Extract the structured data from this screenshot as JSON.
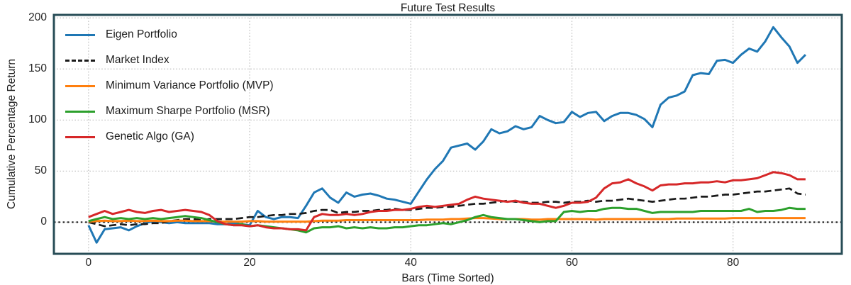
{
  "title": "Future Test Results",
  "axes": {
    "xlabel": "Bars (Time Sorted)",
    "ylabel": "Cumulative Percentage Return",
    "x_ticks": [
      0,
      20,
      40,
      60,
      80
    ],
    "y_ticks": [
      0,
      50,
      100,
      150,
      200
    ]
  },
  "colors": {
    "spine": "#274c56",
    "grid": "#c4c4c4",
    "zero_line": "#111111",
    "text": "#262626",
    "blue": "#1f77b4",
    "black": "#1a1a1a",
    "orange": "#ff7f0e",
    "green": "#2ca02c",
    "red": "#d62728"
  },
  "legend": {
    "items": [
      {
        "label": "Eigen Portfolio",
        "color": "#1f77b4",
        "style": "solid"
      },
      {
        "label": "Market Index",
        "color": "#1a1a1a",
        "style": "dashed"
      },
      {
        "label": "Minimum Variance Portfolio (MVP)",
        "color": "#ff7f0e",
        "style": "solid"
      },
      {
        "label": "Maximum Sharpe Portfolio (MSR)",
        "color": "#2ca02c",
        "style": "solid"
      },
      {
        "label": "Genetic Algo (GA)",
        "color": "#d62728",
        "style": "solid"
      }
    ]
  },
  "chart_data": {
    "type": "line",
    "title": "Future Test Results",
    "xlabel": "Bars (Time Sorted)",
    "ylabel": "Cumulative Percentage Return",
    "xlim": [
      -4.3,
      93.5
    ],
    "ylim": [
      -31,
      203
    ],
    "x_start": 0,
    "x_step": 1,
    "grid": "dotted",
    "zero_line": true,
    "legend_position": "upper-left",
    "series": [
      {
        "name": "Eigen Portfolio",
        "color": "#1f77b4",
        "style": "solid",
        "values": [
          -3,
          -20,
          -7,
          -6,
          -5,
          -8,
          -4,
          -1,
          1,
          0,
          -1,
          0,
          -1,
          -1,
          -1,
          -1,
          -2,
          -2,
          -1,
          -2,
          -3,
          11,
          5,
          3,
          5,
          5,
          4,
          16,
          29,
          33,
          24,
          19,
          29,
          25,
          27,
          28,
          26,
          23,
          22,
          20,
          18,
          30,
          42,
          52,
          60,
          73,
          75,
          77,
          71,
          79,
          91,
          87,
          89,
          94,
          91,
          93,
          104,
          100,
          97,
          98,
          108,
          103,
          107,
          108,
          99,
          104,
          107,
          107,
          105,
          101,
          93,
          115,
          122,
          124,
          128,
          144,
          146,
          145,
          158,
          159,
          156,
          164,
          170,
          167,
          177,
          191,
          181,
          172,
          156,
          164
        ]
      },
      {
        "name": "Market Index",
        "color": "#1a1a1a",
        "style": "dashed",
        "values": [
          0,
          -2,
          -4,
          -3,
          -2,
          -3,
          -2,
          -2,
          -1,
          -1,
          1,
          2,
          3,
          3,
          2,
          3,
          3,
          3,
          3,
          4,
          5,
          5,
          6,
          7,
          7,
          8,
          8,
          9,
          11,
          12,
          12,
          9,
          10,
          10,
          11,
          11,
          12,
          12,
          13,
          12,
          12,
          13,
          14,
          14,
          15,
          15,
          16,
          17,
          18,
          18,
          19,
          20,
          21,
          20,
          20,
          19,
          19,
          20,
          20,
          19,
          20,
          20,
          21,
          20,
          21,
          21,
          22,
          23,
          22,
          21,
          20,
          21,
          22,
          23,
          23,
          24,
          25,
          25,
          26,
          27,
          27,
          28,
          29,
          30,
          30,
          31,
          32,
          33,
          28,
          27
        ]
      },
      {
        "name": "Minimum Variance Portfolio (MVP)",
        "color": "#ff7f0e",
        "style": "solid",
        "values": [
          0.5,
          1,
          1.5,
          1,
          1,
          1.5,
          1,
          1,
          1.5,
          1,
          1,
          1.5,
          1.5,
          1,
          1,
          1,
          0.5,
          0.5,
          0.5,
          0.5,
          1,
          1,
          0.5,
          0.5,
          0.5,
          0.5,
          0.5,
          0.5,
          1,
          1.5,
          1.5,
          1.5,
          2,
          2,
          2,
          2,
          2,
          2,
          2,
          2,
          2,
          2,
          2.5,
          2.5,
          2.5,
          3,
          3,
          3.5,
          4,
          4,
          3.5,
          3,
          3,
          3,
          3,
          2.5,
          2.5,
          3,
          3,
          3,
          3,
          3,
          3,
          2.5,
          3,
          3,
          3,
          3,
          3,
          3,
          3,
          3,
          3,
          3.5,
          3.5,
          3.5,
          3.5,
          3.5,
          3.5,
          3.5,
          4,
          4,
          4,
          4,
          4,
          4,
          4,
          4,
          4,
          4
        ]
      },
      {
        "name": "Maximum Sharpe Portfolio (MSR)",
        "color": "#2ca02c",
        "style": "solid",
        "values": [
          1,
          3,
          5,
          3,
          4,
          3,
          4,
          3,
          4,
          3,
          4,
          5,
          6,
          5,
          4,
          2,
          0,
          -2,
          -3,
          -2,
          -4,
          -3,
          -4,
          -5,
          -6,
          -7,
          -8,
          -10,
          -6,
          -5,
          -5,
          -4,
          -6,
          -5,
          -6,
          -5,
          -6,
          -6,
          -5,
          -5,
          -4,
          -3,
          -3,
          -2,
          -1,
          -2,
          0,
          2,
          5,
          7,
          5,
          4,
          3,
          3,
          2,
          1,
          0,
          1,
          1,
          10,
          11,
          10,
          11,
          11,
          13,
          14,
          14,
          13,
          13,
          11,
          9,
          10,
          10,
          10,
          10,
          10,
          11,
          11,
          11,
          11,
          11,
          11,
          13,
          10,
          11,
          11,
          12,
          14,
          13,
          13
        ]
      },
      {
        "name": "Genetic Algo (GA)",
        "color": "#d62728",
        "style": "solid",
        "values": [
          5,
          8,
          11,
          8,
          10,
          12,
          10,
          9,
          11,
          12,
          10,
          11,
          12,
          11,
          10,
          7,
          1,
          -2,
          -3,
          -3,
          -4,
          -3,
          -5,
          -6,
          -6,
          -7,
          -7,
          -8,
          5,
          8,
          7,
          7,
          8,
          7,
          8,
          10,
          11,
          11,
          12,
          12,
          13,
          15,
          16,
          15,
          16,
          17,
          18,
          22,
          25,
          23,
          22,
          21,
          20,
          21,
          19,
          18,
          18,
          16,
          14,
          16,
          19,
          19,
          20,
          24,
          33,
          38,
          39,
          42,
          38,
          35,
          31,
          36,
          37,
          37,
          38,
          38,
          39,
          39,
          40,
          39,
          41,
          41,
          42,
          43,
          46,
          49,
          48,
          46,
          42,
          42
        ]
      }
    ]
  }
}
